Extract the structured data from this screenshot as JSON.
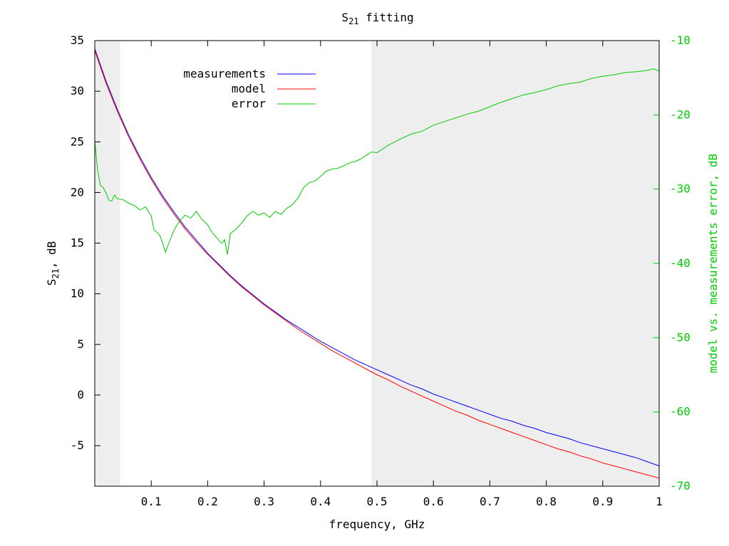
{
  "chart_data": {
    "type": "line",
    "title_main": "S",
    "title_sub": "21",
    "title_rest": " fitting",
    "xlabel": "frequency, GHz",
    "ylabel_main": "S",
    "ylabel_sub": "21",
    "ylabel_rest": ", dB",
    "y2label": "model vs. measurements error, dB",
    "xlim": [
      0.0,
      1.0
    ],
    "ylim": [
      -9,
      35
    ],
    "y2lim": [
      -70,
      -10
    ],
    "xticks": [
      "0.1",
      "0.2",
      "0.3",
      "0.4",
      "0.5",
      "0.6",
      "0.7",
      "0.8",
      "0.9",
      "1"
    ],
    "xtick_values": [
      0.1,
      0.2,
      0.3,
      0.4,
      0.5,
      0.6,
      0.7,
      0.8,
      0.9,
      1.0
    ],
    "yticks": [
      "35",
      "30",
      "25",
      "20",
      "15",
      "10",
      "5",
      "0",
      "-5"
    ],
    "ytick_values": [
      35,
      30,
      25,
      20,
      15,
      10,
      5,
      0,
      -5
    ],
    "y2ticks": [
      "-10",
      "-20",
      "-30",
      "-40",
      "-50",
      "-60",
      "-70"
    ],
    "y2tick_values": [
      -10,
      -20,
      -30,
      -40,
      -50,
      -60,
      -70
    ],
    "shaded_ranges": [
      [
        0.0,
        0.045
      ],
      [
        0.49,
        1.0
      ]
    ],
    "legend_position": "top-left",
    "series": [
      {
        "name": "measurements",
        "color": "#0000ff",
        "axis": "left",
        "x": [
          0.0,
          0.02,
          0.04,
          0.06,
          0.08,
          0.1,
          0.12,
          0.14,
          0.16,
          0.18,
          0.2,
          0.22,
          0.24,
          0.26,
          0.28,
          0.3,
          0.32,
          0.34,
          0.36,
          0.38,
          0.4,
          0.42,
          0.44,
          0.46,
          0.48,
          0.5,
          0.52,
          0.54,
          0.56,
          0.58,
          0.6,
          0.62,
          0.64,
          0.66,
          0.68,
          0.7,
          0.72,
          0.74,
          0.76,
          0.78,
          0.8,
          0.82,
          0.84,
          0.86,
          0.88,
          0.9,
          0.92,
          0.94,
          0.96,
          0.98,
          1.0
        ],
        "y": [
          34.2,
          31.0,
          28.2,
          25.7,
          23.5,
          21.5,
          19.7,
          18.1,
          16.6,
          15.3,
          14.0,
          12.9,
          11.8,
          10.8,
          9.9,
          9.0,
          8.2,
          7.4,
          6.7,
          6.0,
          5.3,
          4.7,
          4.1,
          3.5,
          3.0,
          2.5,
          2.0,
          1.5,
          1.0,
          0.6,
          0.1,
          -0.3,
          -0.7,
          -1.1,
          -1.5,
          -1.9,
          -2.3,
          -2.6,
          -3.0,
          -3.3,
          -3.7,
          -4.0,
          -4.3,
          -4.7,
          -5.0,
          -5.3,
          -5.6,
          -5.9,
          -6.2,
          -6.6,
          -7.0
        ]
      },
      {
        "name": "model",
        "color": "#ff0000",
        "axis": "left",
        "x": [
          0.0,
          0.02,
          0.04,
          0.06,
          0.08,
          0.1,
          0.12,
          0.14,
          0.16,
          0.18,
          0.2,
          0.22,
          0.24,
          0.26,
          0.28,
          0.3,
          0.32,
          0.34,
          0.36,
          0.38,
          0.4,
          0.42,
          0.44,
          0.46,
          0.48,
          0.5,
          0.52,
          0.54,
          0.56,
          0.58,
          0.6,
          0.62,
          0.64,
          0.66,
          0.68,
          0.7,
          0.72,
          0.74,
          0.76,
          0.78,
          0.8,
          0.82,
          0.84,
          0.86,
          0.88,
          0.9,
          0.92,
          0.94,
          0.96,
          0.98,
          1.0
        ],
        "y": [
          34.0,
          30.8,
          28.0,
          25.5,
          23.3,
          21.3,
          19.5,
          17.9,
          16.4,
          15.1,
          13.9,
          12.8,
          11.7,
          10.7,
          9.8,
          8.9,
          8.1,
          7.3,
          6.5,
          5.8,
          5.1,
          4.4,
          3.8,
          3.2,
          2.6,
          2.0,
          1.5,
          0.9,
          0.4,
          -0.1,
          -0.6,
          -1.1,
          -1.6,
          -2.0,
          -2.5,
          -2.9,
          -3.3,
          -3.7,
          -4.1,
          -4.5,
          -4.9,
          -5.3,
          -5.6,
          -6.0,
          -6.3,
          -6.7,
          -7.0,
          -7.3,
          -7.6,
          -7.9,
          -8.2
        ]
      },
      {
        "name": "error",
        "color": "#00cc00",
        "axis": "right",
        "x": [
          0.0,
          0.005,
          0.01,
          0.015,
          0.02,
          0.025,
          0.03,
          0.035,
          0.04,
          0.05,
          0.06,
          0.07,
          0.08,
          0.09,
          0.1,
          0.105,
          0.11,
          0.115,
          0.12,
          0.125,
          0.13,
          0.14,
          0.15,
          0.16,
          0.17,
          0.18,
          0.19,
          0.2,
          0.205,
          0.21,
          0.22,
          0.225,
          0.23,
          0.235,
          0.24,
          0.25,
          0.26,
          0.27,
          0.28,
          0.29,
          0.3,
          0.31,
          0.32,
          0.33,
          0.34,
          0.35,
          0.36,
          0.37,
          0.38,
          0.39,
          0.4,
          0.41,
          0.42,
          0.43,
          0.44,
          0.45,
          0.46,
          0.47,
          0.48,
          0.49,
          0.5,
          0.52,
          0.54,
          0.56,
          0.58,
          0.6,
          0.62,
          0.64,
          0.66,
          0.68,
          0.7,
          0.72,
          0.74,
          0.76,
          0.78,
          0.8,
          0.82,
          0.84,
          0.86,
          0.88,
          0.9,
          0.92,
          0.94,
          0.96,
          0.98,
          0.99,
          1.0
        ],
        "y": [
          -23.5,
          -27.5,
          -29.5,
          -29.8,
          -30.5,
          -31.5,
          -31.6,
          -30.8,
          -31.3,
          -31.4,
          -31.9,
          -32.2,
          -32.8,
          -32.4,
          -33.6,
          -35.5,
          -35.8,
          -36.2,
          -37.2,
          -38.5,
          -37.5,
          -35.6,
          -34.3,
          -33.5,
          -33.9,
          -33.0,
          -34.1,
          -34.8,
          -35.5,
          -36.0,
          -36.9,
          -37.3,
          -36.8,
          -38.8,
          -36.0,
          -35.4,
          -34.6,
          -33.6,
          -33.0,
          -33.5,
          -33.2,
          -33.8,
          -33.0,
          -33.4,
          -32.6,
          -32.1,
          -31.2,
          -29.8,
          -29.1,
          -28.9,
          -28.3,
          -27.6,
          -27.3,
          -27.2,
          -26.9,
          -26.5,
          -26.3,
          -26.0,
          -25.5,
          -25.0,
          -25.1,
          -24.1,
          -23.3,
          -22.6,
          -22.2,
          -21.4,
          -20.9,
          -20.4,
          -19.9,
          -19.5,
          -18.9,
          -18.3,
          -17.8,
          -17.3,
          -17.0,
          -16.6,
          -16.1,
          -15.8,
          -15.6,
          -15.1,
          -14.8,
          -14.6,
          -14.3,
          -14.2,
          -14.0,
          -13.8,
          -14.1
        ]
      }
    ]
  }
}
